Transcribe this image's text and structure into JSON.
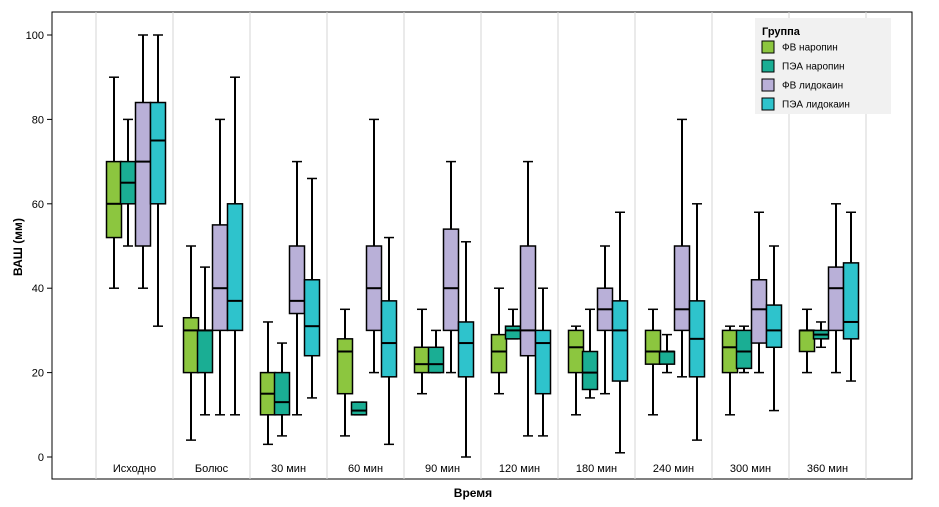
{
  "chart_data": {
    "type": "boxplot",
    "xlabel": "Время",
    "ylabel": "ВАШ (мм)",
    "ylim": [
      0,
      100
    ],
    "yticks": [
      0,
      20,
      40,
      60,
      80,
      100
    ],
    "grid": "vertical separators between groups",
    "legend": {
      "title": "Группа",
      "placement": "top-right",
      "items": [
        {
          "label": "ФВ наропин",
          "color": "#8CC63F"
        },
        {
          "label": "ПЭА наропин",
          "color": "#1AAE94"
        },
        {
          "label": "ФВ лидокаин",
          "color": "#B9B0D8"
        },
        {
          "label": "ПЭА лидокаин",
          "color": "#2EC3CC"
        }
      ]
    },
    "categories": [
      "Исходно",
      "Болюс",
      "30 мин",
      "60 мин",
      "90 мин",
      "120 мин",
      "180 мин",
      "240 мин",
      "300 мин",
      "360 мин"
    ],
    "series": [
      {
        "name": "ФВ наропин",
        "color": "#8CC63F",
        "boxes": [
          {
            "min": 40,
            "q1": 52,
            "median": 60,
            "q3": 70,
            "max": 90
          },
          {
            "min": 4,
            "q1": 20,
            "median": 30,
            "q3": 33,
            "max": 50
          },
          {
            "min": 3,
            "q1": 10,
            "median": 15,
            "q3": 20,
            "max": 32
          },
          {
            "min": 5,
            "q1": 15,
            "median": 25,
            "q3": 28,
            "max": 35
          },
          {
            "min": 15,
            "q1": 20,
            "median": 22,
            "q3": 26,
            "max": 35
          },
          {
            "min": 15,
            "q1": 20,
            "median": 25,
            "q3": 29,
            "max": 40
          },
          {
            "min": 10,
            "q1": 20,
            "median": 26,
            "q3": 30,
            "max": 31
          },
          {
            "min": 10,
            "q1": 22,
            "median": 25,
            "q3": 30,
            "max": 35
          },
          {
            "min": 10,
            "q1": 20,
            "median": 26,
            "q3": 30,
            "max": 31
          },
          {
            "min": 20,
            "q1": 25,
            "median": 30,
            "q3": 30,
            "max": 35
          }
        ]
      },
      {
        "name": "ПЭА наропин",
        "color": "#1AAE94",
        "boxes": [
          {
            "min": 50,
            "q1": 60,
            "median": 65,
            "q3": 70,
            "max": 80
          },
          {
            "min": 10,
            "q1": 20,
            "median": 30,
            "q3": 30,
            "max": 45
          },
          {
            "min": 5,
            "q1": 10,
            "median": 13,
            "q3": 20,
            "max": 27
          },
          {
            "min": 10,
            "q1": 10,
            "median": 11,
            "q3": 13,
            "max": 13
          },
          {
            "min": 20,
            "q1": 20,
            "median": 22,
            "q3": 26,
            "max": 30
          },
          {
            "min": 28,
            "q1": 28,
            "median": 30,
            "q3": 31,
            "max": 35
          },
          {
            "min": 14,
            "q1": 16,
            "median": 20,
            "q3": 25,
            "max": 35
          },
          {
            "min": 20,
            "q1": 22,
            "median": 25,
            "q3": 25,
            "max": 29
          },
          {
            "min": 20,
            "q1": 21,
            "median": 25,
            "q3": 30,
            "max": 31
          },
          {
            "min": 26,
            "q1": 28,
            "median": 29,
            "q3": 30,
            "max": 32
          }
        ]
      },
      {
        "name": "ФВ лидокаин",
        "color": "#B9B0D8",
        "boxes": [
          {
            "min": 40,
            "q1": 50,
            "median": 70,
            "q3": 84,
            "max": 100
          },
          {
            "min": 10,
            "q1": 30,
            "median": 40,
            "q3": 55,
            "max": 80
          },
          {
            "min": 10,
            "q1": 34,
            "median": 37,
            "q3": 50,
            "max": 70
          },
          {
            "min": 20,
            "q1": 30,
            "median": 40,
            "q3": 50,
            "max": 80
          },
          {
            "min": 20,
            "q1": 30,
            "median": 40,
            "q3": 54,
            "max": 70
          },
          {
            "min": 5,
            "q1": 24,
            "median": 30,
            "q3": 50,
            "max": 70
          },
          {
            "min": 15,
            "q1": 30,
            "median": 35,
            "q3": 40,
            "max": 50
          },
          {
            "min": 19,
            "q1": 30,
            "median": 35,
            "q3": 50,
            "max": 80
          },
          {
            "min": 20,
            "q1": 27,
            "median": 35,
            "q3": 42,
            "max": 58
          },
          {
            "min": 20,
            "q1": 30,
            "median": 40,
            "q3": 45,
            "max": 60
          }
        ]
      },
      {
        "name": "ПЭА лидокаин",
        "color": "#2EC3CC",
        "boxes": [
          {
            "min": 31,
            "q1": 60,
            "median": 75,
            "q3": 84,
            "max": 100
          },
          {
            "min": 10,
            "q1": 30,
            "median": 37,
            "q3": 60,
            "max": 90
          },
          {
            "min": 14,
            "q1": 24,
            "median": 31,
            "q3": 42,
            "max": 66
          },
          {
            "min": 3,
            "q1": 19,
            "median": 27,
            "q3": 37,
            "max": 52
          },
          {
            "min": 0,
            "q1": 19,
            "median": 27,
            "q3": 32,
            "max": 51
          },
          {
            "min": 5,
            "q1": 15,
            "median": 27,
            "q3": 30,
            "max": 40
          },
          {
            "min": 1,
            "q1": 18,
            "median": 30,
            "q3": 37,
            "max": 58
          },
          {
            "min": 4,
            "q1": 19,
            "median": 28,
            "q3": 37,
            "max": 60
          },
          {
            "min": 11,
            "q1": 26,
            "median": 30,
            "q3": 36,
            "max": 50
          },
          {
            "min": 18,
            "q1": 28,
            "median": 32,
            "q3": 46,
            "max": 58
          }
        ]
      }
    ]
  }
}
